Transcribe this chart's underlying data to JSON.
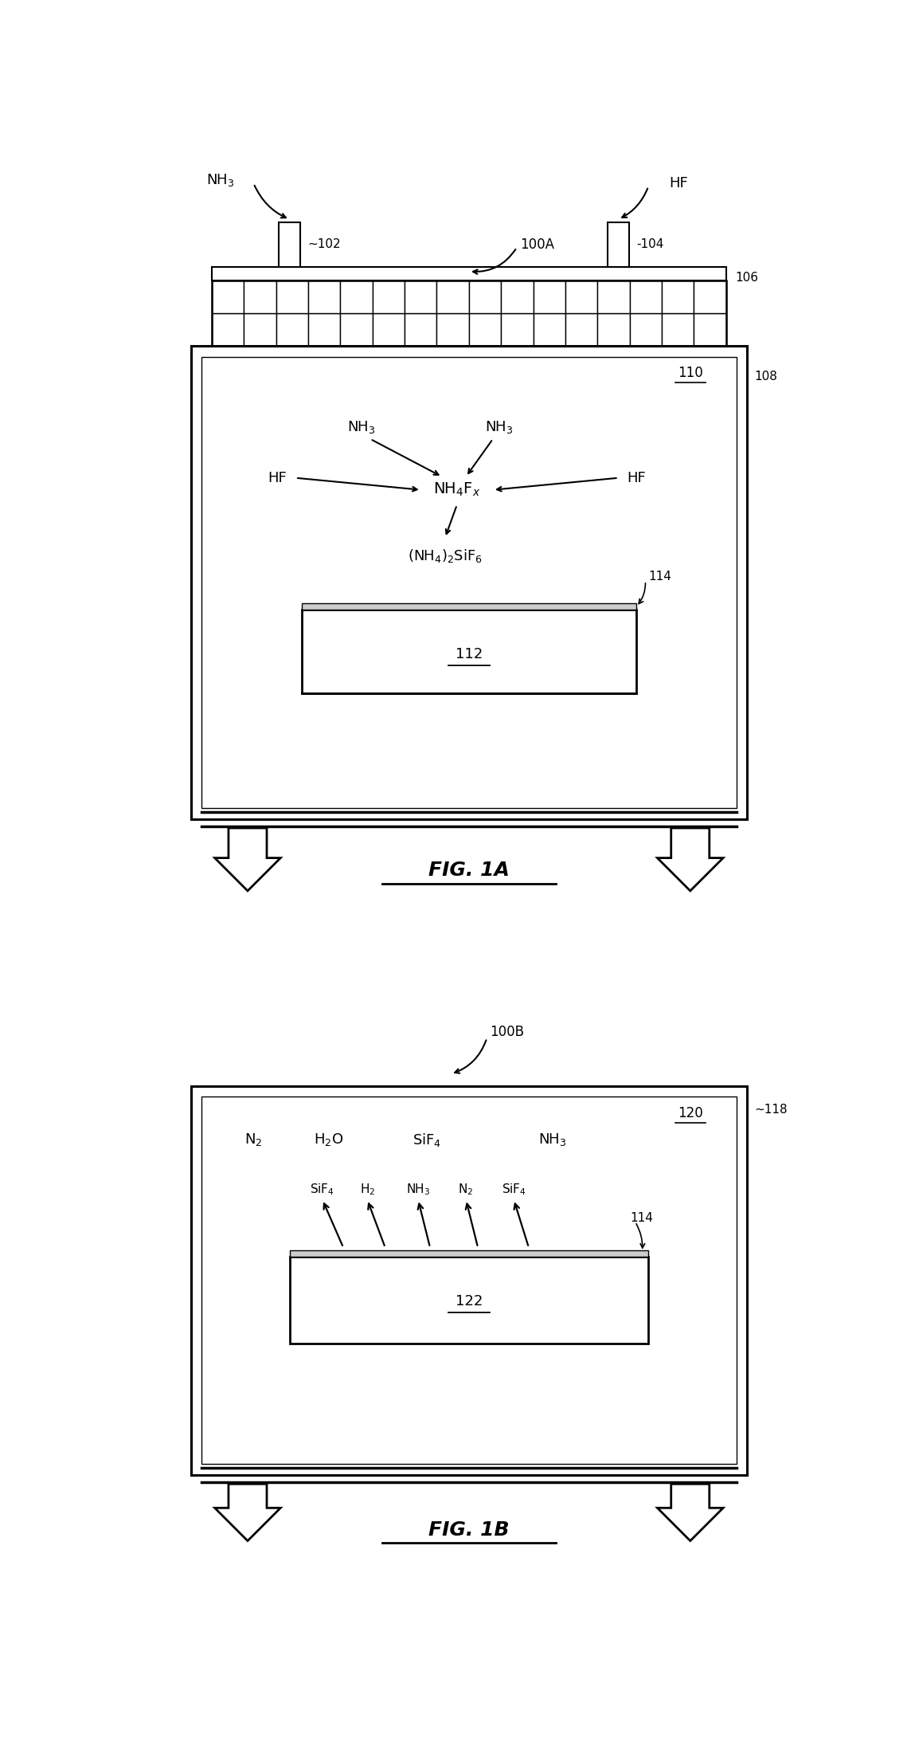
{
  "fig_width": 11.49,
  "fig_height": 21.81,
  "bg_color": "#ffffff",
  "line_color": "#000000",
  "fig1a": {
    "label": "FIG. 1A",
    "ref_100A": "100A",
    "ref_102": "~102",
    "ref_104": "-104",
    "ref_106": "106",
    "ref_108": "108",
    "ref_110": "110",
    "ref_112": "112",
    "ref_114": "114",
    "nh3_left": "NH$_3$",
    "hf_left": "HF",
    "hf_right": "HF",
    "nh3_mid_left": "NH$_3$",
    "nh3_mid_right": "NH$_3$",
    "nh4fx_label": "NH$_4$F$_x$",
    "nh4sif6_label": "(NH$_4$)$_2$SiF$_6$"
  },
  "fig1b": {
    "label": "FIG. 1B",
    "ref_100B": "100B",
    "ref_118": "~118",
    "ref_120": "120",
    "ref_122": "122",
    "ref_114": "114",
    "n2_top": "N$_2$",
    "h2o_top": "H$_2$O",
    "sif4_top": "SiF$_4$",
    "nh3_top": "NH$_3$",
    "sif4_up1": "SiF$_4$",
    "h2_up": "H$_2$",
    "nh3_up": "NH$_3$",
    "n2_up": "N$_2$",
    "sif4_up2": "SiF$_4$"
  }
}
